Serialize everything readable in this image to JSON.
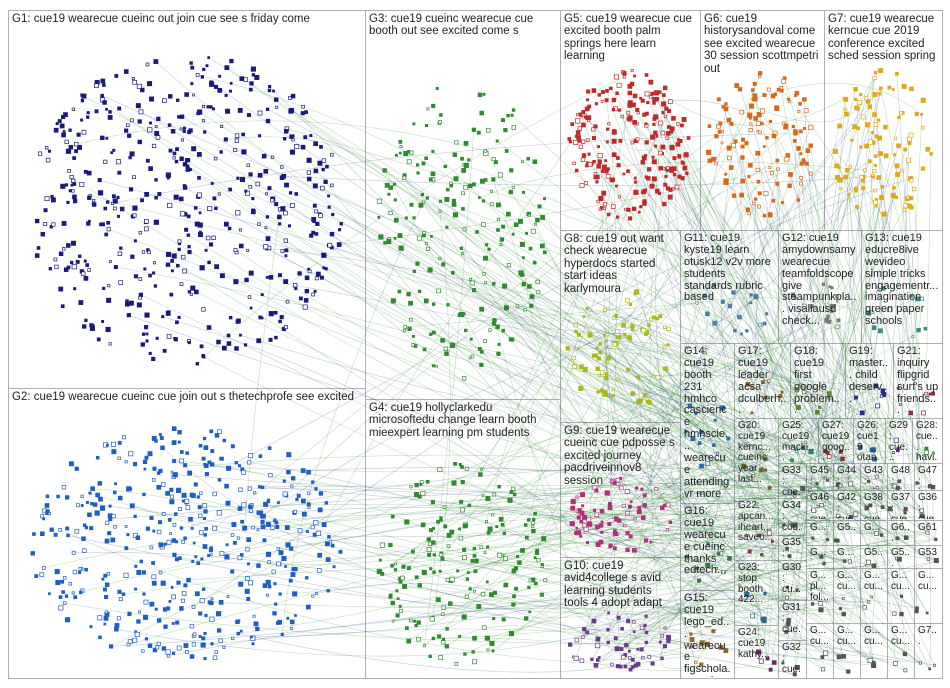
{
  "groups": [
    "G1: cue19 wearecue cueinc out join cue see s friday come",
    "G2: cue19 wearecue cueinc cue join out s thetechprofe see excited",
    "G3: cue19 cueinc wearecue cue booth out see excited come s",
    "G4: cue19 hollyclarkedu microsoftedu change learn booth mieexpert learning pm students",
    "G5: cue19 wearecue cue excited booth palm springs here learn learning",
    "G6: cue19 historysandoval come see excited wearecue 30 session scottmpetri out",
    "G7: cue19 wearecue kerncue cue 2019 conference excited sched session spring",
    "G8: cue19 out want check wearecue hyperdocs started start ideas karlymoura",
    "G11: cue19 kyste19 learn otusk12 v2v more students standards rubric based",
    "G12: cue19 amydownsamy wearecue teamfoldscope give steampunkpla... visaliausd check...",
    "G13: cue19 educre8ive wevideo simple tricks engagementr... imagination green paper schools",
    "G9: cue19 wearecue cueinc cue pdposse s excited journey pacdriveinnov8 session",
    "G10: cue19 avid4college s avid learning students tools 4 adopt adapt",
    "G14: cue19 booth 231 hmhco cascience hmhscie... wearecue attending vr more",
    "G17: cue19 leader acsa dculberh...",
    "G18: cue19 first google problem...",
    "G19: master... child deserv...",
    "G21: inquiry flipgrid surf's up friends...",
    "G20: cue19 kernc... cueinc year last...",
    "G25: cue19 macki...",
    "G27: cue19 goog...",
    "G26: cue19 otan...",
    "G29: cue... jen...",
    "G28: cue... havi...",
    "G33: cue...",
    "G45: boo...",
    "G44: lea...",
    "G43: ed...",
    "G48: ed...",
    "G47: boo...",
    "G16: cue19 wearecue cueinc thanks edtech...",
    "G22: apcan... iheart... saveo...",
    "G34: cod...",
    "G46: cue...",
    "G42: cue...",
    "G38: cue...",
    "G37: cue...",
    "G36: cue...",
    "G...",
    "G5...",
    "G...",
    "G6...",
    "G61",
    "G35: cue...",
    "G...",
    "G...",
    "G5...",
    "G5...",
    "G53",
    "G15: cue19 lego_ed... wearecue figschola... cueinc t...",
    "G23: stop booth 422...",
    "G30: cu...",
    "G24: cue19 kathy...",
    "G31: cue...",
    "G32: cue...",
    "G... pl... fol...",
    "G... cu...",
    "G... cu...",
    "G... cu...",
    "G... cu...",
    "G... cu...",
    "G... cu...",
    "G... cu...",
    "G... cu...",
    "G7..."
  ]
}
